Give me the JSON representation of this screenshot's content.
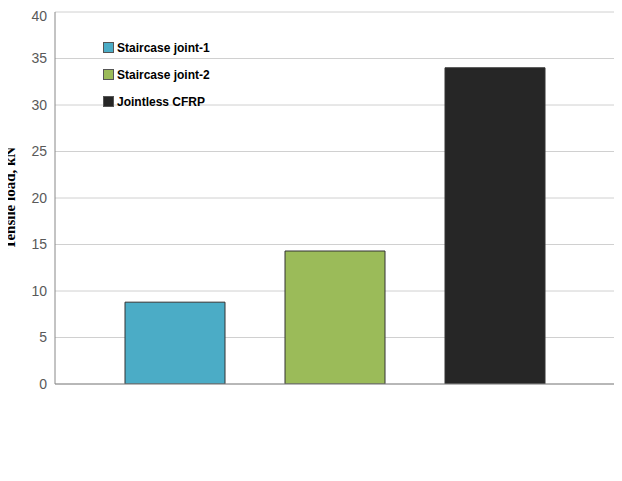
{
  "chart_data": {
    "type": "bar",
    "y_label": "Tensile load, kN",
    "categories": [
      null
    ],
    "series": [
      {
        "name": "Staircase joint-1",
        "color": "#4bacc6",
        "values": [
          8.8
        ]
      },
      {
        "name": "Staircase joint-2",
        "color": "#9bbb59",
        "values": [
          14.3
        ]
      },
      {
        "name": "Jointless CFRP",
        "color": "#262626",
        "values": [
          34
        ]
      }
    ],
    "ylim": [
      0,
      40
    ],
    "yticks": [
      0,
      5,
      10,
      15,
      20,
      25,
      30,
      35,
      40
    ],
    "grid": true,
    "legend": "upper left"
  }
}
